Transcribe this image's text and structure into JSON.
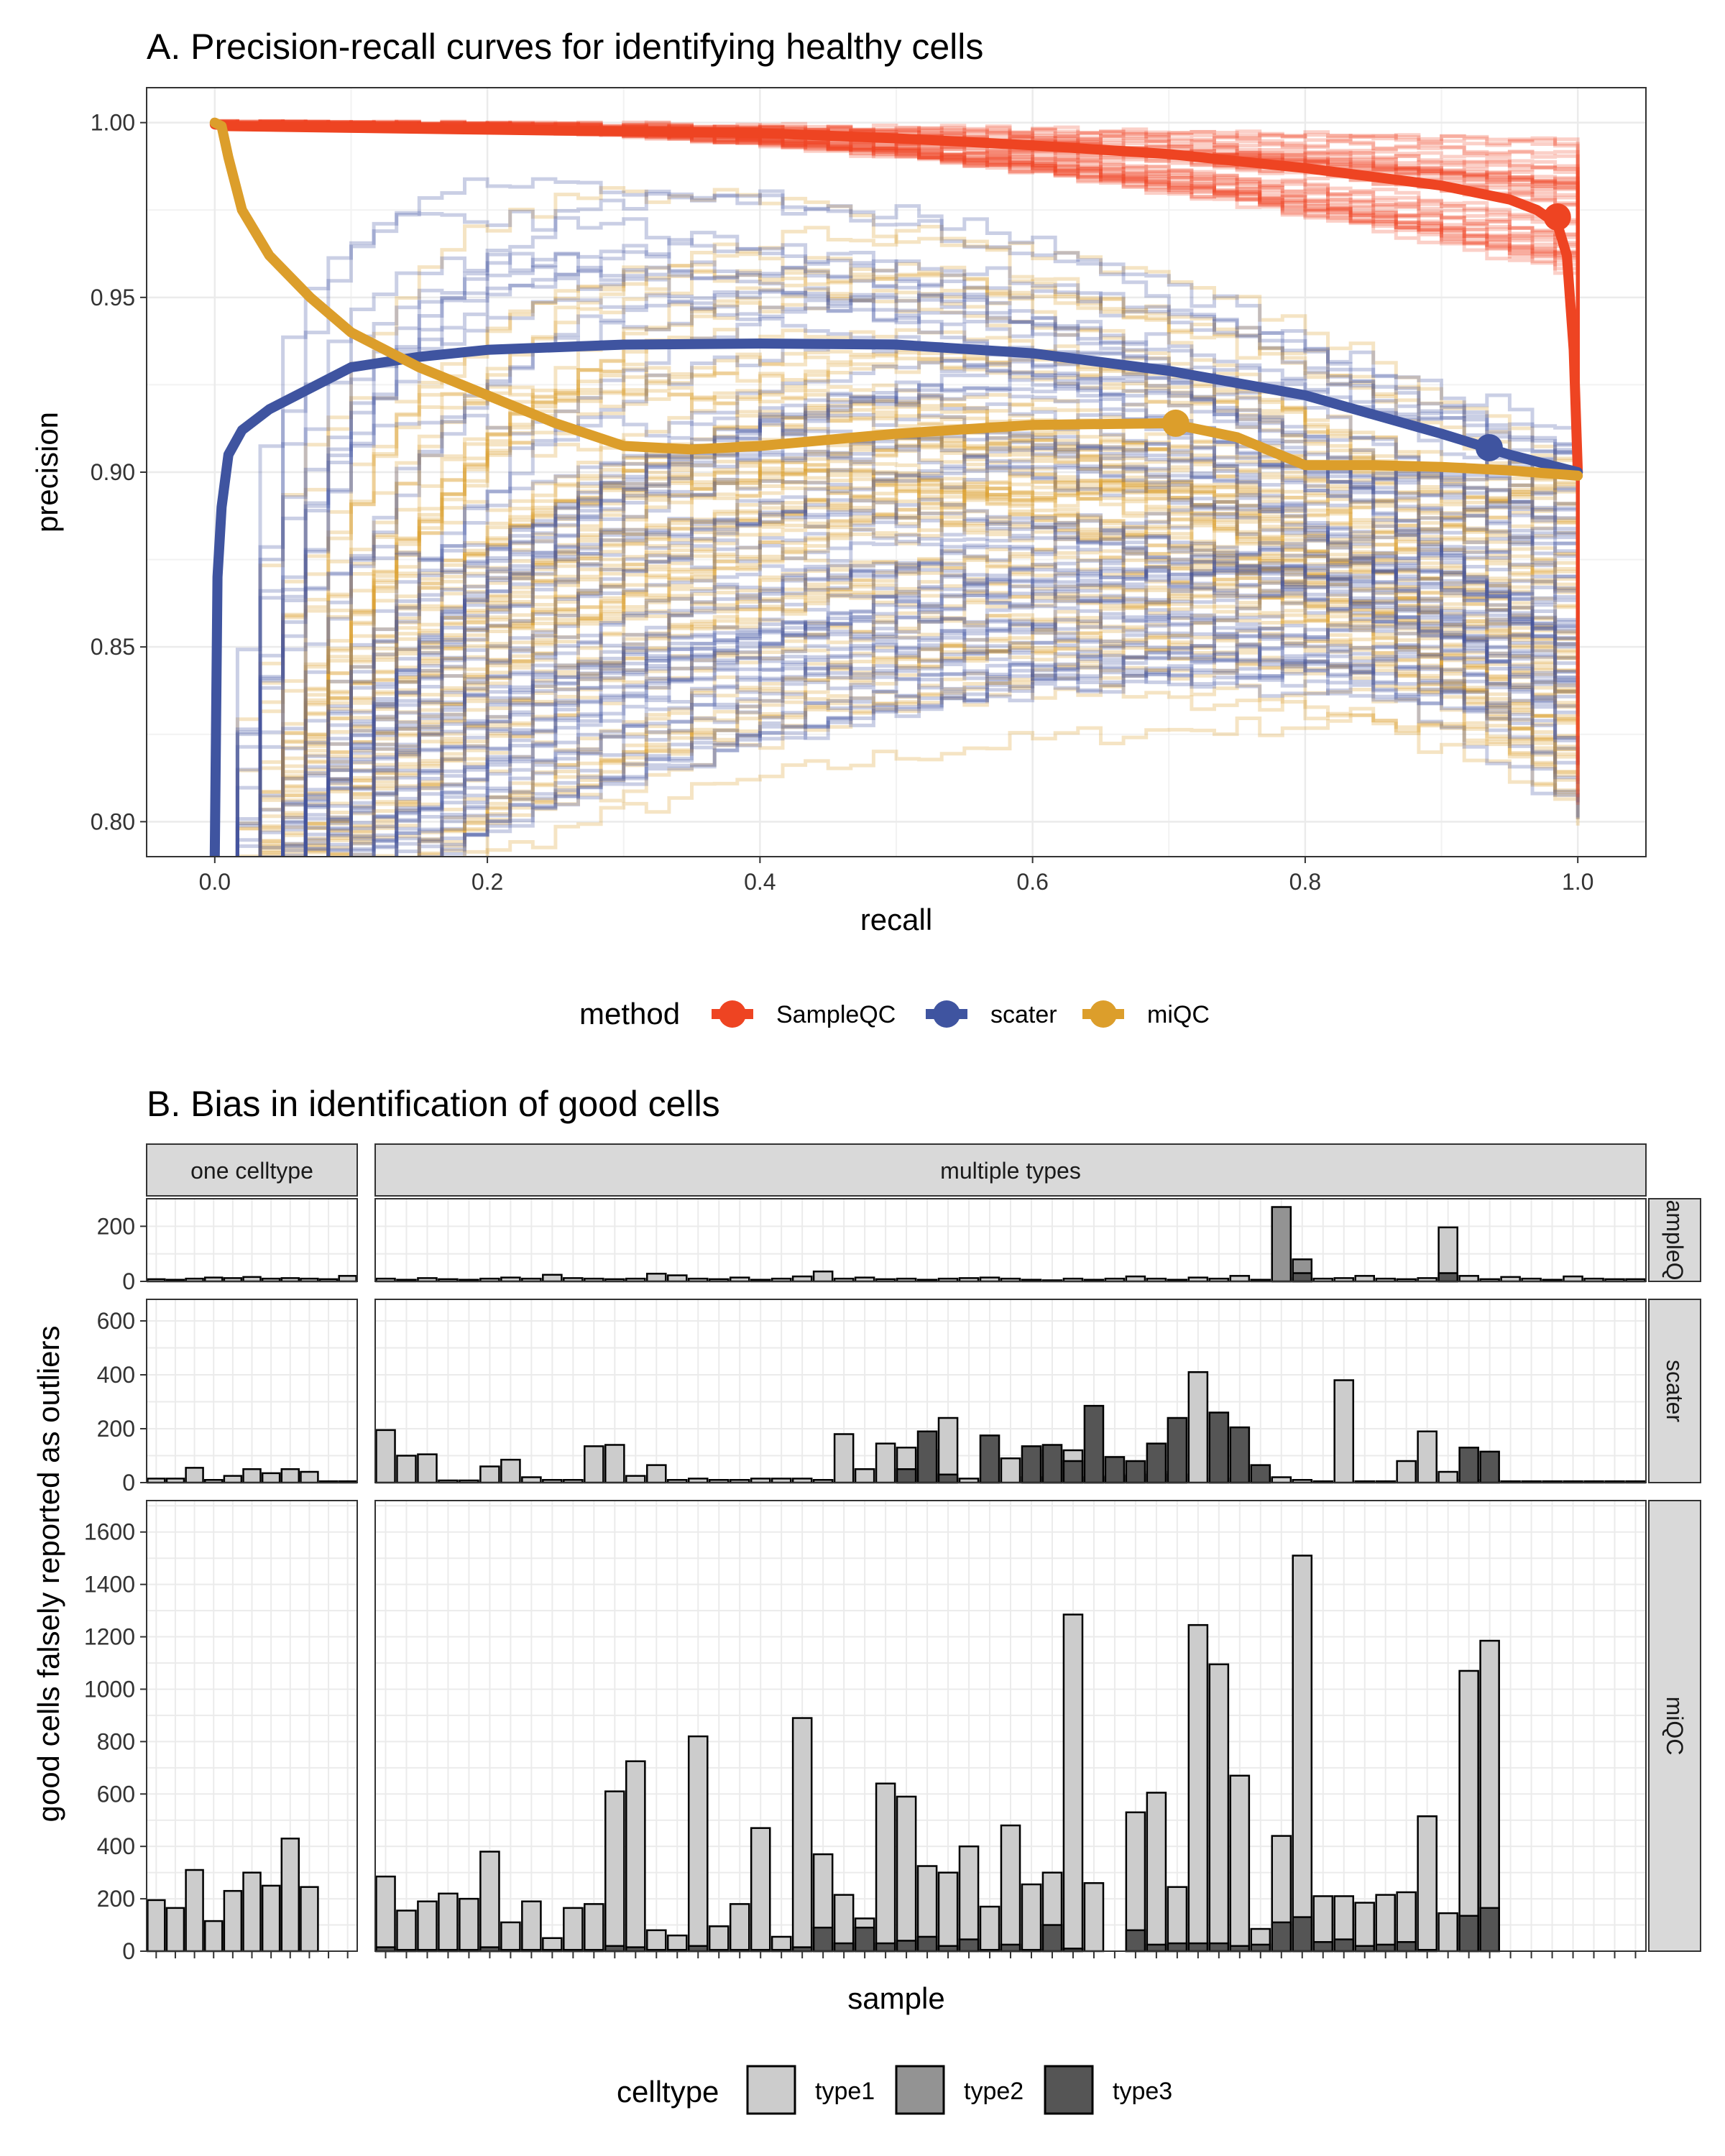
{
  "chart_data": [
    {
      "type": "line",
      "title": "A. Precision-recall curves for identifying healthy cells",
      "xlabel": "recall",
      "ylabel": "precision",
      "xlim": [
        -0.05,
        1.05
      ],
      "ylim": [
        0.79,
        1.01
      ],
      "xticks": [
        0.0,
        0.2,
        0.4,
        0.6,
        0.8,
        1.0
      ],
      "xtick_labels": [
        "0.0",
        "0.2",
        "0.4",
        "0.6",
        "0.8",
        "1.0"
      ],
      "yticks": [
        0.8,
        0.85,
        0.9,
        0.95,
        1.0
      ],
      "ytick_labels": [
        "0.80",
        "0.85",
        "0.90",
        "0.95",
        "1.00"
      ],
      "grid": true,
      "legend": {
        "title": "method",
        "position": "bottom"
      },
      "colors": {
        "SampleQC": "#ee4422",
        "scater": "#3f54a0",
        "miQC": "#dc9e2b"
      },
      "series": [
        {
          "name": "SampleQC",
          "x": [
            0.0,
            0.01,
            0.1,
            0.2,
            0.3,
            0.4,
            0.5,
            0.6,
            0.7,
            0.8,
            0.9,
            0.95,
            0.97,
            0.985,
            0.992,
            0.997,
            1.0
          ],
          "y": [
            0.9995,
            0.999,
            0.9985,
            0.998,
            0.9975,
            0.997,
            0.9955,
            0.9935,
            0.991,
            0.987,
            0.982,
            0.978,
            0.975,
            0.971,
            0.962,
            0.935,
            0.9
          ],
          "marker": {
            "x": 0.985,
            "y": 0.973
          }
        },
        {
          "name": "scater",
          "x": [
            0.0,
            0.002,
            0.005,
            0.01,
            0.02,
            0.04,
            0.07,
            0.1,
            0.15,
            0.2,
            0.3,
            0.4,
            0.5,
            0.6,
            0.7,
            0.8,
            0.9,
            0.95,
            1.0
          ],
          "y": [
            0.79,
            0.87,
            0.89,
            0.905,
            0.912,
            0.918,
            0.924,
            0.93,
            0.933,
            0.935,
            0.9365,
            0.9368,
            0.9365,
            0.934,
            0.929,
            0.922,
            0.911,
            0.905,
            0.9
          ],
          "marker": {
            "x": 0.935,
            "y": 0.907
          }
        },
        {
          "name": "miQC",
          "x": [
            0.0,
            0.005,
            0.01,
            0.02,
            0.04,
            0.07,
            0.1,
            0.15,
            0.2,
            0.25,
            0.3,
            0.35,
            0.4,
            0.5,
            0.6,
            0.7,
            0.75,
            0.8,
            0.85,
            0.9,
            0.95,
            1.0
          ],
          "y": [
            1.0,
            0.999,
            0.99,
            0.975,
            0.962,
            0.95,
            0.94,
            0.93,
            0.922,
            0.914,
            0.9075,
            0.9065,
            0.9075,
            0.911,
            0.9135,
            0.914,
            0.91,
            0.902,
            0.902,
            0.9015,
            0.9005,
            0.899
          ],
          "marker": {
            "x": 0.705,
            "y": 0.914
          }
        }
      ]
    },
    {
      "type": "bar",
      "title": "B. Bias in identification of good cells",
      "xlabel": "sample",
      "ylabel": "good cells falsely reported as outliers",
      "stacked": true,
      "grid": true,
      "legend": {
        "title": "celltype",
        "position": "bottom"
      },
      "colors": {
        "type1": "#cccccc",
        "type2": "#939393",
        "type3": "#555555"
      },
      "column_facets": [
        "one celltype",
        "multiple types"
      ],
      "row_facets": [
        "SampleQC",
        "scater",
        "miQC"
      ],
      "row_facet_display": [
        "ampleQ",
        "scater",
        "miQC"
      ],
      "legend_labels": [
        "type1",
        "type2",
        "type3"
      ],
      "panels": [
        {
          "row": "SampleQC",
          "ylim": [
            0,
            300
          ],
          "yticks": [
            0,
            200
          ],
          "ytick_labels": [
            "0",
            "200"
          ],
          "one_celltype": {
            "type1": [
              8,
              6,
              10,
              14,
              12,
              16,
              10,
              12,
              10,
              8,
              20
            ]
          },
          "multiple_types": {
            "type1": [
              10,
              6,
              12,
              8,
              6,
              10,
              14,
              10,
              24,
              12,
              10,
              8,
              10,
              28,
              22,
              10,
              8,
              14,
              6,
              10,
              18,
              36,
              10,
              14,
              8,
              10,
              6,
              10,
              12,
              14,
              10,
              6,
              4,
              10,
              6,
              10,
              18,
              10,
              6,
              14,
              10,
              20,
              6,
              12,
              6,
              10,
              12,
              20,
              10,
              8,
              12,
              196,
              20,
              8,
              16,
              10,
              6,
              18,
              10,
              8,
              8
            ],
            "type2": [
              0,
              0,
              0,
              0,
              0,
              0,
              0,
              0,
              0,
              0,
              0,
              0,
              0,
              0,
              0,
              0,
              0,
              0,
              0,
              0,
              0,
              0,
              0,
              0,
              0,
              0,
              0,
              0,
              0,
              0,
              0,
              0,
              0,
              0,
              0,
              0,
              0,
              0,
              0,
              0,
              0,
              0,
              0,
              270,
              80,
              0,
              0,
              0,
              0,
              0,
              0,
              0,
              0,
              0,
              0,
              0,
              0,
              0,
              0,
              0,
              0
            ],
            "type3": [
              0,
              0,
              0,
              0,
              0,
              0,
              0,
              0,
              0,
              0,
              0,
              0,
              0,
              0,
              0,
              0,
              0,
              0,
              0,
              0,
              0,
              0,
              0,
              0,
              0,
              0,
              0,
              0,
              0,
              0,
              0,
              0,
              0,
              0,
              0,
              0,
              0,
              0,
              0,
              0,
              0,
              0,
              0,
              0,
              30,
              0,
              0,
              0,
              0,
              0,
              0,
              30,
              0,
              0,
              0,
              0,
              0,
              0,
              0,
              0,
              0
            ]
          }
        },
        {
          "row": "scater",
          "ylim": [
            0,
            680
          ],
          "yticks": [
            0,
            200,
            400,
            600
          ],
          "ytick_labels": [
            "0",
            "200",
            "400",
            "600"
          ],
          "one_celltype": {
            "type1": [
              15,
              15,
              55,
              10,
              25,
              50,
              35,
              50,
              40,
              5,
              5
            ]
          },
          "multiple_types": {
            "type1": [
              195,
              100,
              105,
              8,
              8,
              60,
              85,
              20,
              10,
              10,
              135,
              140,
              25,
              65,
              10,
              15,
              10,
              10,
              15,
              15,
              15,
              10,
              180,
              50,
              145,
              130,
              120,
              240,
              15,
              5,
              90,
              20,
              120,
              120,
              20,
              25,
              30,
              40,
              30,
              410,
              15,
              5,
              15,
              20,
              10,
              5,
              380,
              5,
              5,
              80,
              190,
              40,
              10,
              10,
              5,
              5,
              5,
              5,
              5,
              5,
              5
            ],
            "type2": [
              0,
              0,
              0,
              0,
              0,
              0,
              0,
              0,
              0,
              0,
              0,
              0,
              0,
              0,
              0,
              0,
              0,
              0,
              0,
              0,
              0,
              0,
              0,
              0,
              0,
              0,
              0,
              0,
              0,
              0,
              0,
              0,
              0,
              0,
              0,
              0,
              0,
              0,
              0,
              0,
              0,
              0,
              0,
              0,
              0,
              0,
              0,
              0,
              0,
              0,
              0,
              0,
              0,
              0,
              0,
              0,
              0,
              0,
              0,
              0,
              0
            ],
            "type3": [
              0,
              0,
              0,
              0,
              0,
              0,
              0,
              0,
              0,
              0,
              0,
              0,
              0,
              0,
              0,
              0,
              0,
              0,
              0,
              0,
              0,
              0,
              0,
              0,
              0,
              50,
              190,
              30,
              0,
              175,
              0,
              135,
              140,
              80,
              285,
              95,
              80,
              145,
              240,
              0,
              260,
              205,
              65,
              0,
              0,
              0,
              0,
              0,
              0,
              0,
              0,
              0,
              130,
              115,
              0,
              0,
              0,
              0,
              0,
              0,
              0
            ]
          }
        },
        {
          "row": "miQC",
          "ylim": [
            0,
            1720
          ],
          "yticks": [
            0,
            200,
            400,
            600,
            800,
            1000,
            1200,
            1400,
            1600
          ],
          "ytick_labels": [
            "0",
            "200",
            "400",
            "600",
            "800",
            "1000",
            "1200",
            "1400",
            "1600"
          ],
          "one_celltype": {
            "type1": [
              195,
              165,
              310,
              115,
              230,
              300,
              250,
              430,
              245,
              0,
              0
            ]
          },
          "multiple_types": {
            "type1": [
              285,
              155,
              190,
              220,
              200,
              380,
              110,
              190,
              50,
              165,
              180,
              610,
              725,
              80,
              60,
              820,
              95,
              180,
              470,
              55,
              890,
              370,
              215,
              125,
              640,
              590,
              325,
              300,
              400,
              170,
              480,
              255,
              300,
              1285,
              260,
              0,
              530,
              605,
              245,
              1245,
              1095,
              670,
              85,
              440,
              1510,
              210,
              210,
              185,
              215,
              225,
              515,
              145,
              1070,
              1185,
              0,
              0,
              0,
              0,
              0,
              0,
              0
            ],
            "type2": [
              0,
              0,
              0,
              0,
              0,
              0,
              0,
              0,
              0,
              0,
              0,
              0,
              0,
              0,
              0,
              0,
              0,
              0,
              0,
              0,
              0,
              0,
              0,
              0,
              0,
              0,
              0,
              0,
              0,
              0,
              0,
              0,
              0,
              0,
              0,
              0,
              0,
              0,
              0,
              0,
              0,
              0,
              0,
              0,
              0,
              0,
              0,
              0,
              0,
              0,
              0,
              0,
              0,
              0,
              0,
              0,
              0,
              0,
              0,
              0,
              0
            ],
            "type3": [
              15,
              5,
              5,
              5,
              5,
              15,
              5,
              5,
              5,
              5,
              5,
              20,
              15,
              5,
              5,
              20,
              5,
              5,
              5,
              5,
              15,
              90,
              30,
              90,
              30,
              40,
              55,
              20,
              45,
              5,
              25,
              5,
              100,
              10,
              0,
              0,
              80,
              25,
              30,
              30,
              30,
              20,
              25,
              110,
              130,
              35,
              45,
              20,
              25,
              35,
              5,
              0,
              135,
              165,
              0,
              0,
              0,
              0,
              0,
              0,
              0
            ]
          }
        }
      ]
    }
  ]
}
